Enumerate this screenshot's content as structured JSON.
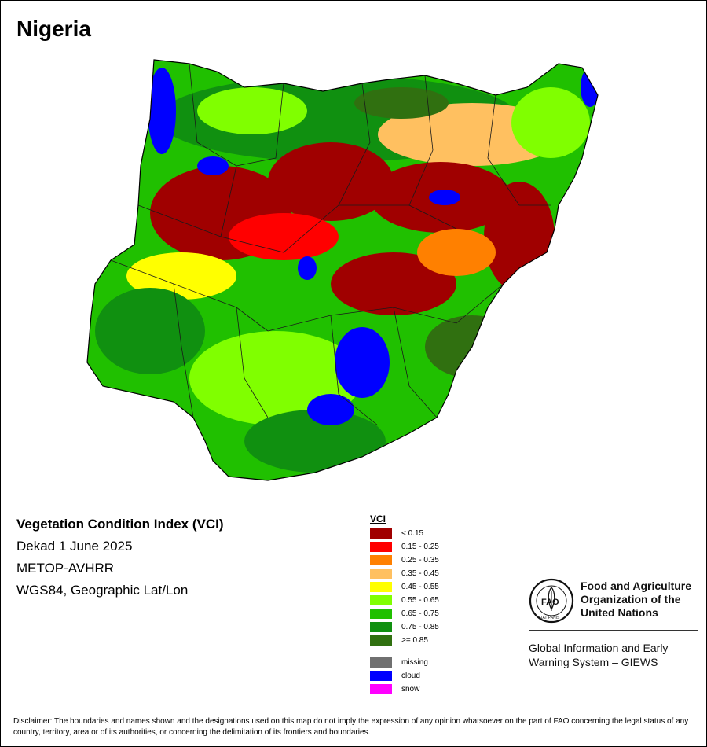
{
  "map": {
    "country": "Nigeria",
    "index_name": "Vegetation Condition Index (VCI)",
    "period": "Dekad 1 June 2025",
    "sensor": "METOP-AVHRR",
    "projection": "WGS84, Geographic Lat/Lon"
  },
  "legend": {
    "title": "VCI",
    "classes": [
      {
        "label": "< 0.15",
        "color": "#a00000"
      },
      {
        "label": "0.15 - 0.25",
        "color": "#ff0000"
      },
      {
        "label": "0.25 - 0.35",
        "color": "#ff8000"
      },
      {
        "label": "0.35 - 0.45",
        "color": "#ffc060"
      },
      {
        "label": "0.45 - 0.55",
        "color": "#ffff00"
      },
      {
        "label": "0.55 - 0.65",
        "color": "#80ff00"
      },
      {
        "label": "0.65 - 0.75",
        "color": "#20c000"
      },
      {
        "label": "0.75 - 0.85",
        "color": "#109010"
      },
      {
        "label": ">= 0.85",
        "color": "#307010"
      }
    ],
    "other": [
      {
        "label": "missing",
        "color": "#707070"
      },
      {
        "label": "cloud",
        "color": "#0000ff"
      },
      {
        "label": "snow",
        "color": "#ff00ff"
      }
    ]
  },
  "organization": {
    "logo_text": "FAO",
    "logo_motto": "FIAT PANIS",
    "name": "Food and Agriculture Organization of the United Nations",
    "system": "Global Information and Early Warning System – GIEWS"
  },
  "disclaimer": "Disclaimer: The boundaries and names shown and the designations used on this map do not imply the expression of any opinion whatsoever on the part of FAO concerning the legal status of any country, territory, area or of its authorities, or concerning the delimitation of its frontiers and boundaries."
}
